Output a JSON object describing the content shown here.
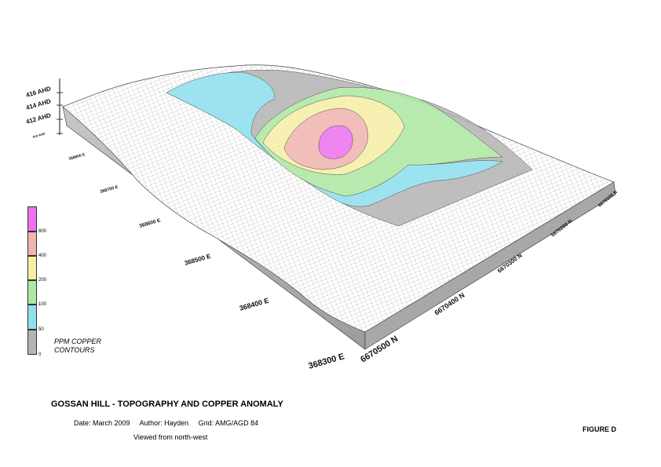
{
  "title": "GOSSAN HILL - TOPOGRAPHY AND COPPER ANOMALY",
  "date": "Date: March 2009",
  "author": "Author: Hayden",
  "grid": "Grid: AMG/AGD 84",
  "view": "Viewed from north-west",
  "figure": "FIGURE D",
  "legend": {
    "title_line1": "PPM COPPER",
    "title_line2": "CONTOURS",
    "classes": [
      {
        "range": "0-50",
        "color": "#b4b4b4"
      },
      {
        "range": "50-100",
        "color": "#8ee0ee"
      },
      {
        "range": "100-200",
        "color": "#aee8a2"
      },
      {
        "range": "200-400",
        "color": "#f6f0a6"
      },
      {
        "range": "400-800",
        "color": "#f2b4b0"
      },
      {
        "range": ">800",
        "color": "#ee72ee"
      }
    ],
    "ticks": [
      "0",
      "50",
      "100",
      "200",
      "400",
      "800"
    ]
  },
  "elevation_labels": [
    "416 AHD",
    "414 AHD",
    "412 AHD",
    "410 AHD"
  ],
  "easting_labels": [
    "368300 E",
    "368400 E",
    "368500 E",
    "368600 E",
    "368700 E",
    "368800 E"
  ],
  "northing_labels": [
    "6670500 N",
    "6670400 N",
    "6670300 N",
    "6670200 N",
    "6670100 N"
  ]
}
